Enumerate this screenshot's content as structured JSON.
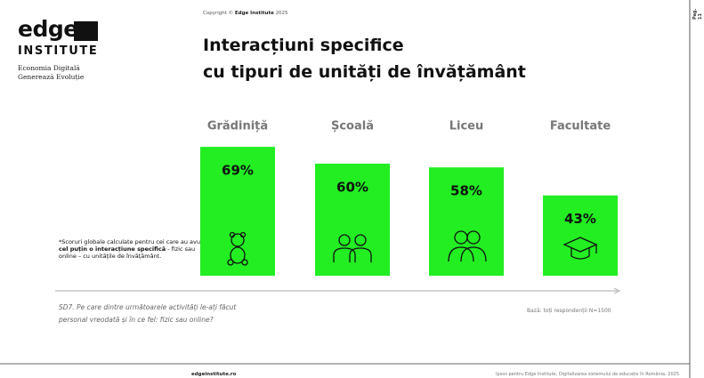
{
  "logo": {
    "word": "edge",
    "subword": "INSTITUTE",
    "tagline": [
      "Economia Digitală",
      "Generează Evoluție"
    ]
  },
  "copyright": {
    "prefix": "Copyright ©",
    "owner": "Edge Institute",
    "year": "2025"
  },
  "page_number": "Pag. 11",
  "chart_data": {
    "type": "bar",
    "title": [
      "Interacțiuni specifice",
      "cu tipuri de unități de învățământ"
    ],
    "categories": [
      "Grădiniță",
      "Școală",
      "Liceu",
      "Facultate"
    ],
    "values": [
      69,
      60,
      58,
      43
    ],
    "value_labels": [
      "69%",
      "60%",
      "58%",
      "43%"
    ],
    "color": "#22ee22"
  },
  "footnote": [
    "*Scoruri globale calculate pentru cei care au avut ",
    "cel puțin o interacțiune specifică",
    " - fizic sau online – cu unitățile de învățământ."
  ],
  "question": [
    "SD7. Pe care dintre următoarele activități le-ați făcut",
    "personal vreodată și în ce fel: fizic sau online?"
  ],
  "base": "Bază: toți respondenții N=1500",
  "footer": {
    "site": "edgeinstitute.ro",
    "source": "Ipsos pentru Edge Institute, Digitalizarea sistemului de educație în România, 2025"
  }
}
